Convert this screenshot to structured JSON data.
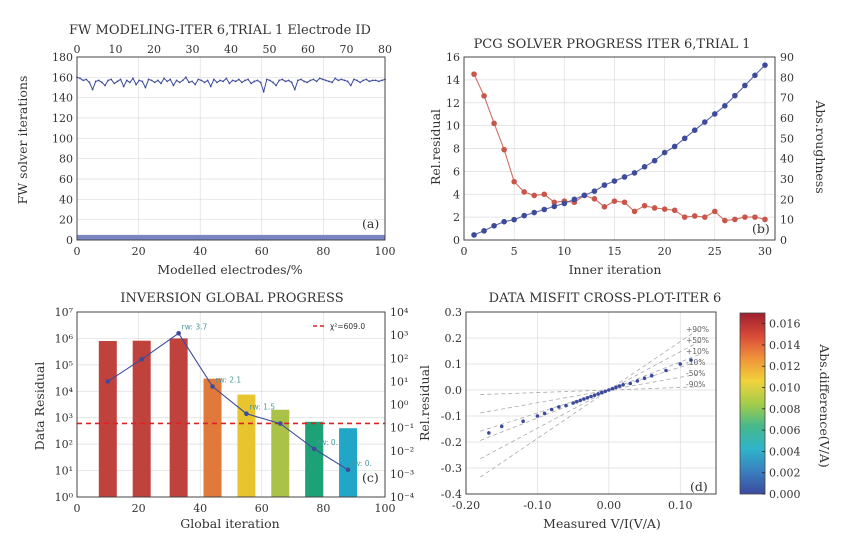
{
  "chart_data": [
    {
      "type": "line",
      "title": "FW MODELING-ITER 6,TRIAL 1 Electrode ID",
      "xlabel": "Modelled electrodes/%",
      "ylabel": "FW solver iterations",
      "panel_label": "(a)",
      "xlim": [
        0,
        100
      ],
      "ylim": [
        0,
        180
      ],
      "xticks": [
        "0",
        "20",
        "40",
        "60",
        "80",
        "100"
      ],
      "yticks": [
        "0",
        "20",
        "40",
        "60",
        "80",
        "100",
        "120",
        "140",
        "160",
        "180"
      ],
      "top_xticks": [
        "0",
        "10",
        "20",
        "30",
        "40",
        "50",
        "60",
        "70",
        "80"
      ],
      "band": {
        "from": 0,
        "to": 5
      },
      "series": [
        {
          "name": "FW solver iterations",
          "y": [
            160,
            159,
            157,
            158,
            155,
            148,
            156,
            157,
            155,
            152,
            157,
            158,
            154,
            156,
            158,
            151,
            157,
            155,
            159,
            153,
            157,
            156,
            150,
            158,
            157,
            155,
            157,
            154,
            159,
            156,
            158,
            152,
            157,
            155,
            157,
            160,
            155,
            156,
            153,
            158,
            157,
            155,
            157,
            151,
            158,
            155,
            157,
            156,
            159,
            154,
            157,
            156,
            158,
            155,
            157,
            158,
            154,
            156,
            157,
            155,
            146,
            158,
            157,
            155,
            152,
            157,
            158,
            156,
            157,
            155,
            148,
            157,
            158,
            156,
            155,
            157,
            158,
            156,
            159,
            158,
            157,
            156,
            155,
            159,
            157,
            158,
            157,
            156,
            152,
            158,
            157,
            155,
            157,
            158,
            156,
            157,
            157,
            156,
            157,
            158
          ]
        }
      ]
    },
    {
      "type": "line",
      "title": "PCG SOLVER PROGRESS ITER 6,TRIAL 1",
      "xlabel": "Inner iteration",
      "ylabel": "Rel.residual",
      "ylabel_right": "Abs.roughness",
      "panel_label": "(b)",
      "xlim": [
        0,
        31
      ],
      "ylim": [
        0,
        16
      ],
      "ylim_right": [
        0,
        90
      ],
      "xticks": [
        "0",
        "5",
        "10",
        "15",
        "20",
        "25",
        "30"
      ],
      "yticks": [
        "0",
        "2",
        "4",
        "6",
        "8",
        "10",
        "12",
        "14",
        "16"
      ],
      "yticks_right": [
        "0",
        "10",
        "20",
        "30",
        "40",
        "50",
        "60",
        "70",
        "80",
        "90"
      ],
      "x": [
        1,
        2,
        3,
        4,
        5,
        6,
        7,
        8,
        9,
        10,
        11,
        12,
        13,
        14,
        15,
        16,
        17,
        18,
        19,
        20,
        21,
        22,
        23,
        24,
        25,
        26,
        27,
        28,
        29,
        30
      ],
      "series": [
        {
          "name": "Rel.residual",
          "axis": "left",
          "color": "#c9564a",
          "values": [
            14.5,
            12.6,
            10.2,
            7.9,
            5.1,
            4.2,
            3.9,
            4.0,
            3.3,
            3.4,
            3.3,
            3.9,
            3.6,
            2.9,
            3.4,
            3.3,
            2.5,
            3.0,
            2.8,
            2.7,
            2.6,
            2.0,
            2.1,
            2.0,
            2.5,
            1.7,
            1.8,
            2.0,
            2.0,
            1.8
          ]
        },
        {
          "name": "Abs.roughness",
          "axis": "right",
          "color": "#3d4b9a",
          "values": [
            2.5,
            4.5,
            7.0,
            9.0,
            10.0,
            12.0,
            13.5,
            15.0,
            16.5,
            18.0,
            20.0,
            22.0,
            24.0,
            27.0,
            29.0,
            31.0,
            33.0,
            36.0,
            39.0,
            43.0,
            46.0,
            50.0,
            54.0,
            58.0,
            62.0,
            66.0,
            71.0,
            76.0,
            81.0,
            86.0
          ]
        }
      ]
    },
    {
      "type": "bar",
      "title": "INVERSION GLOBAL PROGRESS",
      "xlabel": "Global iteration",
      "ylabel": "Data Residual",
      "panel_label": "(c)",
      "xlim": [
        0,
        100
      ],
      "ylog_range": [
        0,
        7
      ],
      "ylog_right_range": [
        -4,
        4
      ],
      "xticks": [
        "0",
        "20",
        "40",
        "60",
        "80",
        "100"
      ],
      "yticks": [
        "10⁰",
        "10¹",
        "10²",
        "10³",
        "10⁴",
        "10⁵",
        "10⁶",
        "10⁷"
      ],
      "yticks_right": [
        "10⁻⁴",
        "10⁻³",
        "10⁻²",
        "10⁻¹",
        "10⁰",
        "10¹",
        "10²",
        "10³",
        "10⁴"
      ],
      "bars": {
        "x": [
          10,
          21,
          33,
          44,
          55,
          66,
          77,
          88
        ],
        "values": [
          800000,
          820000,
          1000000,
          30000,
          7500,
          2000,
          700,
          400
        ],
        "colors": [
          "#c0423d",
          "#c0423d",
          "#c0423d",
          "#e0793a",
          "#e8c52e",
          "#a9c247",
          "#1da277",
          "#22a6c8"
        ]
      },
      "line": {
        "x": [
          10,
          21,
          33,
          44,
          55,
          66,
          77,
          88
        ],
        "values": [
          10,
          90,
          1200,
          6,
          0.4,
          0.15,
          0.012,
          0.0015
        ],
        "color": "#3d4b9a"
      },
      "annotations": [
        "rw: 3.7",
        "rw: 2.1",
        "rw: 1.5",
        "rw: 0.",
        "rw: 0."
      ],
      "reference": {
        "label": "χ²=609.0",
        "value": 609
      }
    },
    {
      "type": "scatter",
      "title": "DATA MISFIT CROSS-PLOT-ITER 6",
      "xlabel": "Measured V/I(V/A)",
      "ylabel": "Rel.residual",
      "panel_label": "(d)",
      "xlim": [
        -0.2,
        0.15
      ],
      "ylim": [
        -0.4,
        0.3
      ],
      "xticks": [
        "-0.20",
        "-0.10",
        "0.00",
        "0.10"
      ],
      "yticks": [
        "-0.4",
        "-0.3",
        "-0.2",
        "-0.1",
        "0.0",
        "0.1",
        "0.2",
        "0.3"
      ],
      "guide_labels": [
        "+90%",
        "+50%",
        "+10%",
        "-10%",
        "-50%",
        "-90%"
      ],
      "colorbar": {
        "label": "Abs.difference(V/A)",
        "ticks": [
          "0.000",
          "0.002",
          "0.004",
          "0.006",
          "0.008",
          "0.010",
          "0.012",
          "0.014",
          "0.016"
        ],
        "range": [
          0,
          0.017
        ]
      },
      "points": {
        "x": [
          -0.168,
          -0.15,
          -0.12,
          -0.1,
          -0.09,
          -0.08,
          -0.07,
          -0.06,
          -0.05,
          -0.045,
          -0.04,
          -0.035,
          -0.03,
          -0.025,
          -0.02,
          -0.015,
          -0.01,
          -0.005,
          0.0,
          0.005,
          0.01,
          0.015,
          0.02,
          0.03,
          0.04,
          0.05,
          0.06,
          0.08,
          0.1,
          0.115
        ],
        "y": [
          -0.165,
          -0.14,
          -0.12,
          -0.1,
          -0.09,
          -0.075,
          -0.065,
          -0.06,
          -0.05,
          -0.045,
          -0.04,
          -0.035,
          -0.03,
          -0.025,
          -0.02,
          -0.015,
          -0.01,
          -0.005,
          0.0,
          0.005,
          0.01,
          0.015,
          0.02,
          0.025,
          0.035,
          0.045,
          0.055,
          0.075,
          0.1,
          0.115
        ],
        "values": [
          0.0005,
          0.0006,
          0.0008,
          0.0006,
          0.0009,
          0.0007,
          0.0005,
          0.0006,
          0.0004,
          0.0007,
          0.0005,
          0.0006,
          0.0004,
          0.0005,
          0.0003,
          0.0004,
          0.0003,
          0.0002,
          0.0002,
          0.0003,
          0.0004,
          0.0003,
          0.0005,
          0.0004,
          0.0006,
          0.0005,
          0.0006,
          0.0007,
          0.0006,
          0.0008
        ]
      }
    }
  ]
}
